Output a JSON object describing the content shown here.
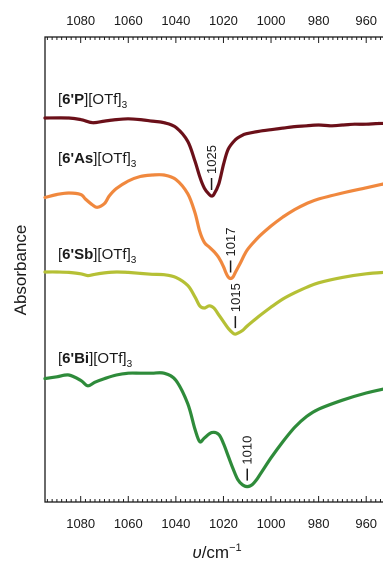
{
  "chart_data": {
    "type": "line",
    "xlabel_symbol": "υ",
    "xlabel_unit": "/cm",
    "xlabel_exp": "−1",
    "ylabel": "Absorbance",
    "xlim": [
      1095,
      950
    ],
    "x_reversed": true,
    "y_ticks_shown": false,
    "grid": false,
    "x_ticks": [
      1080,
      1060,
      1040,
      1020,
      1000,
      980,
      960
    ],
    "series": [
      {
        "prefix": "[",
        "bold": "6'P",
        "mid": "][OTf]",
        "sub": "3",
        "color": "#6b1019",
        "x": [
          1095,
          1085,
          1080,
          1075,
          1070,
          1065,
          1060,
          1055,
          1050,
          1045,
          1040,
          1035,
          1032,
          1030,
          1028,
          1026,
          1025,
          1024,
          1022,
          1020,
          1018,
          1015,
          1012,
          1010,
          1005,
          1000,
          995,
          990,
          985,
          980,
          975,
          970,
          965,
          960,
          955,
          950
        ],
        "y": [
          0.0,
          0.0,
          0.02,
          0.06,
          0.04,
          0.02,
          0.01,
          0.02,
          0.04,
          0.06,
          0.12,
          0.3,
          0.55,
          0.75,
          0.9,
          0.98,
          1.0,
          0.98,
          0.85,
          0.6,
          0.4,
          0.28,
          0.22,
          0.2,
          0.17,
          0.15,
          0.13,
          0.11,
          0.1,
          0.09,
          0.1,
          0.09,
          0.08,
          0.08,
          0.07,
          0.07
        ]
      },
      {
        "prefix": "[",
        "bold": "6'As",
        "mid": "][OTf]",
        "sub": "3",
        "color": "#f0883e",
        "x": [
          1095,
          1090,
          1085,
          1080,
          1078,
          1075,
          1073,
          1070,
          1068,
          1065,
          1060,
          1055,
          1050,
          1045,
          1040,
          1035,
          1032,
          1030,
          1028,
          1026,
          1024,
          1022,
          1020,
          1019,
          1018,
          1017,
          1016,
          1015,
          1013,
          1010,
          1005,
          1000,
          995,
          990,
          985,
          980,
          970,
          960,
          950
        ],
        "y": [
          0.3,
          0.26,
          0.24,
          0.26,
          0.32,
          0.4,
          0.43,
          0.38,
          0.28,
          0.18,
          0.08,
          0.02,
          0.0,
          0.0,
          0.06,
          0.25,
          0.5,
          0.75,
          0.9,
          0.96,
          1.02,
          1.1,
          1.22,
          1.3,
          1.36,
          1.38,
          1.36,
          1.3,
          1.18,
          1.0,
          0.82,
          0.68,
          0.56,
          0.46,
          0.38,
          0.32,
          0.24,
          0.17,
          0.1
        ]
      },
      {
        "prefix": "[",
        "bold": "6'Sb",
        "mid": "][OTf]",
        "sub": "3",
        "color": "#b5c035",
        "x": [
          1095,
          1090,
          1085,
          1080,
          1077,
          1074,
          1070,
          1065,
          1060,
          1055,
          1050,
          1045,
          1040,
          1035,
          1032,
          1030,
          1028,
          1026,
          1024,
          1022,
          1020,
          1018,
          1016,
          1015,
          1014,
          1012,
          1010,
          1005,
          1000,
          995,
          990,
          985,
          980,
          970,
          960,
          950
        ],
        "y": [
          0.0,
          0.0,
          0.01,
          0.04,
          0.08,
          0.05,
          0.02,
          0.0,
          0.01,
          0.03,
          0.05,
          0.06,
          0.12,
          0.3,
          0.55,
          0.75,
          0.8,
          0.75,
          0.8,
          0.95,
          1.1,
          1.25,
          1.36,
          1.38,
          1.36,
          1.3,
          1.2,
          0.98,
          0.78,
          0.6,
          0.46,
          0.34,
          0.24,
          0.12,
          0.04,
          0.0
        ]
      },
      {
        "prefix": "[",
        "bold": "6'Bi",
        "mid": "][OTf]",
        "sub": "3",
        "color": "#2e8b3a",
        "x": [
          1095,
          1090,
          1085,
          1080,
          1077,
          1074,
          1070,
          1065,
          1060,
          1055,
          1050,
          1045,
          1040,
          1035,
          1032,
          1030,
          1028,
          1025,
          1022,
          1020,
          1018,
          1016,
          1014,
          1012,
          1010,
          1008,
          1006,
          1004,
          1000,
          995,
          990,
          985,
          980,
          970,
          960,
          950
        ],
        "y": [
          0.04,
          0.02,
          0.0,
          0.06,
          0.12,
          0.08,
          0.04,
          0.0,
          -0.02,
          -0.02,
          -0.02,
          -0.02,
          0.06,
          0.32,
          0.6,
          0.74,
          0.7,
          0.64,
          0.66,
          0.76,
          0.9,
          1.04,
          1.16,
          1.22,
          1.24,
          1.22,
          1.16,
          1.08,
          0.92,
          0.74,
          0.58,
          0.46,
          0.38,
          0.28,
          0.2,
          0.14
        ]
      }
    ],
    "annotations": [
      {
        "label": "1025",
        "x": 1025,
        "series": 0
      },
      {
        "label": "1017",
        "x": 1017,
        "series": 1
      },
      {
        "label": "1015",
        "x": 1015,
        "series": 2
      },
      {
        "label": "1010",
        "x": 1010,
        "series": 3
      }
    ]
  }
}
